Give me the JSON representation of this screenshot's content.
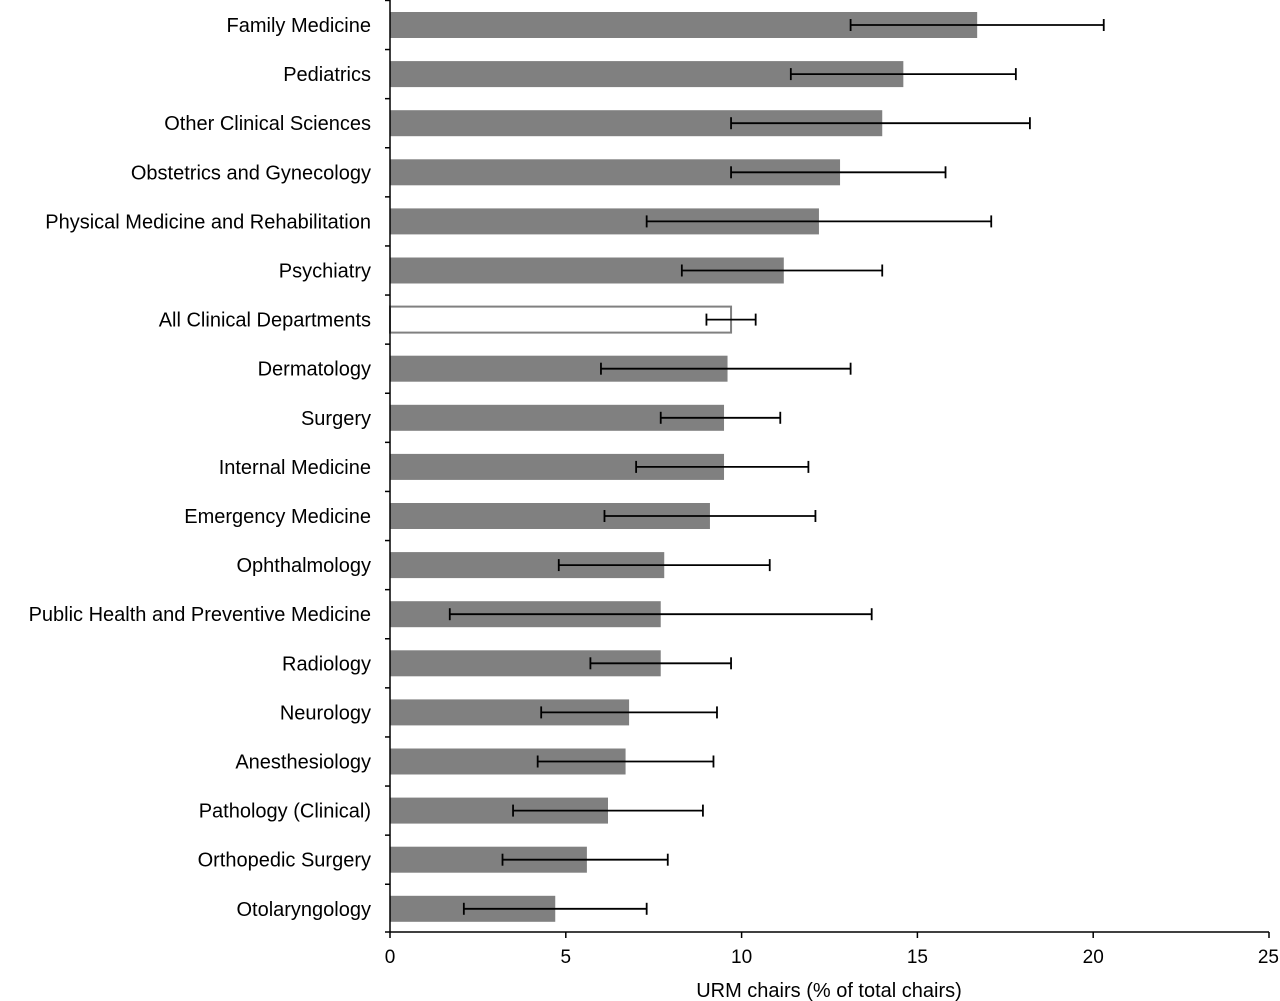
{
  "chart_data": {
    "type": "bar",
    "orientation": "horizontal",
    "title": "",
    "xlabel": "URM chairs (% of total chairs)",
    "ylabel": "",
    "xlim": [
      0,
      25
    ],
    "xticks": [
      "0",
      "5",
      "10",
      "15",
      "20",
      "25"
    ],
    "grid": false,
    "legend": "none",
    "colors": {
      "bar": "#808080",
      "highlight_fill": "#ffffff",
      "highlight_stroke": "#808080",
      "error": "#000000"
    },
    "categories": [
      "Family Medicine",
      "Pediatrics",
      "Other Clinical Sciences",
      "Obstetrics and Gynecology",
      "Physical Medicine and Rehabilitation",
      "Psychiatry",
      "All Clinical Departments",
      "Dermatology",
      "Surgery",
      "Internal Medicine",
      "Emergency Medicine",
      "Ophthalmology",
      "Public Health and Preventive Medicine",
      "Radiology",
      "Neurology",
      "Anesthesiology",
      "Pathology (Clinical)",
      "Orthopedic Surgery",
      "Otolaryngology"
    ],
    "values": [
      16.7,
      14.6,
      14.0,
      12.8,
      12.2,
      11.2,
      9.7,
      9.6,
      9.5,
      9.5,
      9.1,
      7.8,
      7.7,
      7.7,
      6.8,
      6.7,
      6.2,
      5.6,
      4.7
    ],
    "error_low": [
      13.1,
      11.4,
      9.7,
      9.7,
      7.3,
      8.3,
      9.0,
      6.0,
      7.7,
      7.0,
      6.1,
      4.8,
      1.7,
      5.7,
      4.3,
      4.2,
      3.5,
      3.2,
      2.1
    ],
    "error_high": [
      20.3,
      17.8,
      18.2,
      15.8,
      17.1,
      14.0,
      10.4,
      13.1,
      11.1,
      11.9,
      12.1,
      10.8,
      13.7,
      9.7,
      9.3,
      9.2,
      8.9,
      7.9,
      7.3
    ],
    "highlight": [
      "All Clinical Departments"
    ]
  }
}
